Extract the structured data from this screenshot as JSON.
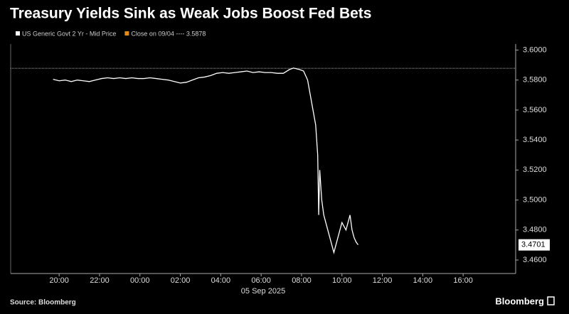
{
  "chart_data": {
    "type": "line",
    "title": "Treasury Yields Sink as Weak Jobs Boost Fed Bets",
    "x_sublabel": "05 Sep 2025",
    "source": "Source: Bloomberg",
    "brand": "Bloomberg",
    "x": [
      -4.3,
      -4.0,
      -3.7,
      -3.4,
      -3.1,
      -2.8,
      -2.5,
      -2.2,
      -1.9,
      -1.6,
      -1.3,
      -1.0,
      -0.7,
      -0.4,
      -0.1,
      0.2,
      0.5,
      0.8,
      1.1,
      1.4,
      1.7,
      2.0,
      2.3,
      2.6,
      2.9,
      3.2,
      3.5,
      3.8,
      4.1,
      4.4,
      4.7,
      5.0,
      5.3,
      5.6,
      5.9,
      6.2,
      6.5,
      6.8,
      7.1,
      7.4,
      7.6,
      7.9,
      8.1,
      8.3,
      8.5,
      8.7,
      8.8,
      8.85,
      8.9,
      9.0,
      9.1,
      9.3,
      9.5,
      9.6,
      9.8,
      10.0,
      10.2,
      10.4,
      10.5,
      10.6,
      10.7,
      10.8
    ],
    "series": [
      {
        "name": "US Generic Govt 2 Yr - Mid Price",
        "color": "#ffffff",
        "values": [
          3.5805,
          3.5795,
          3.58,
          3.579,
          3.58,
          3.5795,
          3.579,
          3.58,
          3.581,
          3.5815,
          3.581,
          3.5815,
          3.581,
          3.5815,
          3.581,
          3.581,
          3.5815,
          3.581,
          3.5805,
          3.58,
          3.579,
          3.578,
          3.5785,
          3.58,
          3.5815,
          3.582,
          3.583,
          3.5845,
          3.585,
          3.5845,
          3.585,
          3.5855,
          3.586,
          3.585,
          3.5855,
          3.585,
          3.585,
          3.5845,
          3.5845,
          3.587,
          3.588,
          3.587,
          3.586,
          3.58,
          3.565,
          3.55,
          3.53,
          3.49,
          3.52,
          3.5,
          3.49,
          3.48,
          3.47,
          3.465,
          3.475,
          3.485,
          3.48,
          3.49,
          3.48,
          3.475,
          3.472,
          3.4701
        ]
      }
    ],
    "reference_line": {
      "name": "Close on 09/04 ---- 3.5878",
      "value": 3.5878,
      "color": "#e08a1e"
    },
    "xlim": [
      -6.4,
      18.6
    ],
    "xticks": [
      {
        "value": -4,
        "label": "20:00"
      },
      {
        "value": -2,
        "label": "22:00"
      },
      {
        "value": 0,
        "label": "00:00"
      },
      {
        "value": 2,
        "label": "02:00"
      },
      {
        "value": 4,
        "label": "04:00"
      },
      {
        "value": 6,
        "label": "06:00"
      },
      {
        "value": 8,
        "label": "08:00"
      },
      {
        "value": 10,
        "label": "10:00"
      },
      {
        "value": 12,
        "label": "12:00"
      },
      {
        "value": 14,
        "label": "14:00"
      },
      {
        "value": 16,
        "label": "16:00"
      }
    ],
    "ylim": [
      3.451,
      3.604
    ],
    "yticks": [
      {
        "value": 3.46,
        "label": "3.4600"
      },
      {
        "value": 3.48,
        "label": "3.4800"
      },
      {
        "value": 3.5,
        "label": "3.5000"
      },
      {
        "value": 3.52,
        "label": "3.5200"
      },
      {
        "value": 3.54,
        "label": "3.5400"
      },
      {
        "value": 3.56,
        "label": "3.5600"
      },
      {
        "value": 3.58,
        "label": "3.5800"
      },
      {
        "value": 3.6,
        "label": "3.6000"
      }
    ],
    "y_axis_side": "right",
    "grid": false
  }
}
